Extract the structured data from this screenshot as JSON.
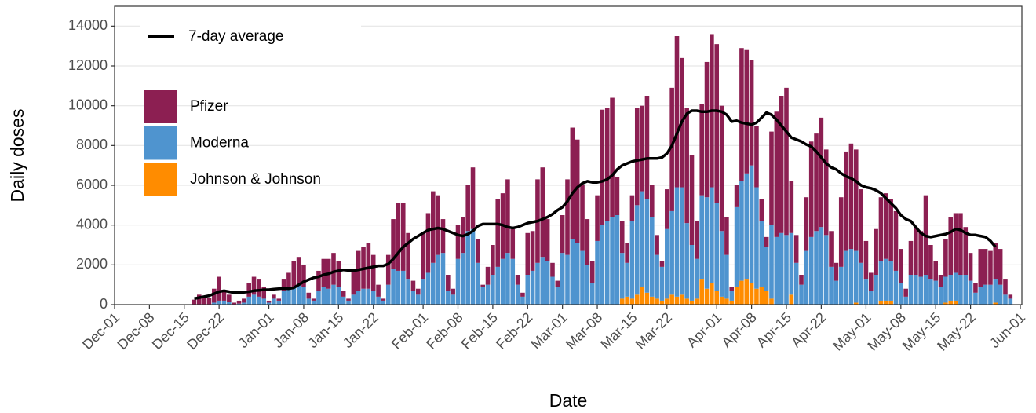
{
  "chart_data": {
    "type": "bar",
    "stacked": true,
    "x_label": "Date",
    "y_label": "Daily doses",
    "x": [
      "Dec-17",
      "Dec-18",
      "Dec-19",
      "Dec-20",
      "Dec-21",
      "Dec-22",
      "Dec-23",
      "Dec-24",
      "Dec-25",
      "Dec-26",
      "Dec-27",
      "Dec-28",
      "Dec-29",
      "Dec-30",
      "Dec-31",
      "Jan-01",
      "Jan-02",
      "Jan-03",
      "Jan-04",
      "Jan-05",
      "Jan-06",
      "Jan-07",
      "Jan-08",
      "Jan-09",
      "Jan-10",
      "Jan-11",
      "Jan-12",
      "Jan-13",
      "Jan-14",
      "Jan-15",
      "Jan-16",
      "Jan-17",
      "Jan-18",
      "Jan-19",
      "Jan-20",
      "Jan-21",
      "Jan-22",
      "Jan-23",
      "Jan-24",
      "Jan-25",
      "Jan-26",
      "Jan-27",
      "Jan-28",
      "Jan-29",
      "Jan-30",
      "Jan-31",
      "Feb-01",
      "Feb-02",
      "Feb-03",
      "Feb-04",
      "Feb-05",
      "Feb-06",
      "Feb-07",
      "Feb-08",
      "Feb-09",
      "Feb-10",
      "Feb-11",
      "Feb-12",
      "Feb-13",
      "Feb-14",
      "Feb-15",
      "Feb-16",
      "Feb-17",
      "Feb-18",
      "Feb-19",
      "Feb-20",
      "Feb-21",
      "Feb-22",
      "Feb-23",
      "Feb-24",
      "Feb-25",
      "Feb-26",
      "Feb-27",
      "Feb-28",
      "Mar-01",
      "Mar-02",
      "Mar-03",
      "Mar-04",
      "Mar-05",
      "Mar-06",
      "Mar-07",
      "Mar-08",
      "Mar-09",
      "Mar-10",
      "Mar-11",
      "Mar-12",
      "Mar-13",
      "Mar-14",
      "Mar-15",
      "Mar-16",
      "Mar-17",
      "Mar-18",
      "Mar-19",
      "Mar-20",
      "Mar-21",
      "Mar-22",
      "Mar-23",
      "Mar-24",
      "Mar-25",
      "Mar-26",
      "Mar-27",
      "Mar-28",
      "Mar-29",
      "Mar-30",
      "Mar-31",
      "Apr-01",
      "Apr-02",
      "Apr-03",
      "Apr-04",
      "Apr-05",
      "Apr-06",
      "Apr-07",
      "Apr-08",
      "Apr-09",
      "Apr-10",
      "Apr-11",
      "Apr-12",
      "Apr-13",
      "Apr-14",
      "Apr-15",
      "Apr-16",
      "Apr-17",
      "Apr-18",
      "Apr-19",
      "Apr-20",
      "Apr-21",
      "Apr-22",
      "Apr-23",
      "Apr-24",
      "Apr-25",
      "Apr-26",
      "Apr-27",
      "Apr-28",
      "Apr-29",
      "Apr-30",
      "May-01",
      "May-02",
      "May-03",
      "May-04",
      "May-05",
      "May-06",
      "May-07",
      "May-08",
      "May-09",
      "May-10",
      "May-11",
      "May-12",
      "May-13",
      "May-14",
      "May-15",
      "May-16",
      "May-17",
      "May-18",
      "May-19",
      "May-20",
      "May-21",
      "May-22",
      "May-23",
      "May-24",
      "May-25",
      "May-26",
      "May-27",
      "May-28",
      "May-29",
      "May-30"
    ],
    "series": [
      {
        "name": "Pfizer",
        "type": "bar",
        "color": "#8c1f52",
        "values": [
          250,
          500,
          450,
          350,
          700,
          1200,
          500,
          350,
          100,
          150,
          200,
          700,
          900,
          900,
          600,
          100,
          200,
          100,
          600,
          800,
          1300,
          1400,
          1100,
          300,
          100,
          1000,
          1400,
          1500,
          1600,
          1300,
          300,
          100,
          1300,
          2000,
          2100,
          2300,
          1800,
          600,
          100,
          1500,
          2500,
          3400,
          3400,
          2300,
          500,
          300,
          2300,
          3000,
          3600,
          3000,
          1700,
          800,
          300,
          1700,
          1800,
          2300,
          3100,
          1200,
          100,
          900,
          1500,
          3400,
          3300,
          3700,
          1500,
          500,
          200,
          2100,
          2000,
          4200,
          4500,
          2100,
          700,
          300,
          1900,
          3800,
          5600,
          5200,
          3300,
          2300,
          1100,
          2300,
          5800,
          5700,
          6000,
          1900,
          1600,
          1000,
          1300,
          4900,
          4300,
          5200,
          1600,
          1000,
          300,
          2000,
          6200,
          7600,
          6500,
          5800,
          4500,
          1900,
          4600,
          6800,
          7700,
          8000,
          6300,
          1900,
          200,
          1100,
          6700,
          6200,
          5300,
          3100,
          1100,
          500,
          4700,
          6300,
          6900,
          7400,
          2600,
          1400,
          500,
          2700,
          4800,
          4900,
          5500,
          4300,
          1800,
          900,
          3500,
          5000,
          5300,
          5100,
          3700,
          1900,
          900,
          2300,
          3200,
          3300,
          3100,
          3000,
          1700,
          400,
          1700,
          2400,
          2300,
          4000,
          1700,
          1000,
          600,
          1900,
          2900,
          3000,
          3100,
          2400,
          1400,
          500,
          1900,
          1800,
          1700,
          1800,
          1800,
          800,
          200
        ]
      },
      {
        "name": "Moderna",
        "type": "bar",
        "color": "#4f94cf",
        "values": [
          0,
          0,
          0,
          0,
          100,
          200,
          200,
          150,
          0,
          50,
          100,
          400,
          500,
          400,
          300,
          100,
          300,
          200,
          700,
          800,
          900,
          1000,
          900,
          300,
          200,
          700,
          900,
          800,
          1000,
          900,
          400,
          200,
          500,
          700,
          800,
          800,
          700,
          400,
          200,
          1000,
          1800,
          1700,
          1700,
          1300,
          700,
          500,
          1300,
          1600,
          2100,
          2500,
          2600,
          700,
          500,
          2300,
          2600,
          3700,
          3800,
          2100,
          900,
          1000,
          1500,
          1900,
          2300,
          2600,
          2300,
          1000,
          400,
          1500,
          1700,
          2100,
          2400,
          2200,
          1400,
          900,
          2600,
          2500,
          3300,
          3100,
          2700,
          2000,
          1100,
          3200,
          4000,
          4200,
          4400,
          4500,
          2300,
          1700,
          3900,
          4500,
          4800,
          4700,
          4000,
          2200,
          1700,
          3500,
          4200,
          5500,
          5400,
          3800,
          2800,
          2000,
          4200,
          4600,
          4800,
          4400,
          3300,
          2200,
          500,
          4000,
          5000,
          5300,
          5900,
          5100,
          3300,
          2200,
          3700,
          3400,
          3600,
          3500,
          3100,
          2100,
          1000,
          2700,
          3400,
          3700,
          3900,
          3500,
          1900,
          1200,
          1900,
          2700,
          2800,
          2600,
          2100,
          1300,
          700,
          1500,
          2000,
          2100,
          2000,
          1700,
          1100,
          400,
          1500,
          1500,
          1400,
          1500,
          1300,
          1200,
          900,
          1300,
          1300,
          1400,
          1500,
          1500,
          1200,
          600,
          900,
          1000,
          1000,
          1200,
          1000,
          500,
          300
        ]
      },
      {
        "name": "Johnson & Johnson",
        "type": "bar",
        "color": "#ff8c00",
        "values": [
          0,
          0,
          0,
          0,
          0,
          0,
          0,
          0,
          0,
          0,
          0,
          0,
          0,
          0,
          0,
          0,
          0,
          0,
          0,
          0,
          0,
          0,
          0,
          0,
          0,
          0,
          0,
          0,
          0,
          0,
          0,
          0,
          0,
          0,
          0,
          0,
          0,
          0,
          0,
          0,
          0,
          0,
          0,
          0,
          0,
          0,
          0,
          0,
          0,
          0,
          0,
          0,
          0,
          0,
          0,
          0,
          0,
          0,
          0,
          0,
          0,
          0,
          0,
          0,
          0,
          0,
          0,
          0,
          0,
          0,
          0,
          0,
          0,
          0,
          0,
          0,
          0,
          0,
          0,
          0,
          0,
          0,
          0,
          0,
          0,
          0,
          300,
          400,
          300,
          500,
          900,
          600,
          400,
          300,
          200,
          300,
          500,
          400,
          500,
          300,
          200,
          300,
          1300,
          800,
          1100,
          700,
          400,
          300,
          200,
          900,
          1200,
          1300,
          1100,
          800,
          900,
          700,
          300,
          0,
          0,
          0,
          500,
          0,
          0,
          0,
          0,
          0,
          0,
          0,
          0,
          0,
          0,
          0,
          0,
          100,
          0,
          0,
          0,
          0,
          200,
          200,
          200,
          0,
          0,
          0,
          0,
          0,
          0,
          0,
          0,
          0,
          0,
          100,
          200,
          200,
          0,
          0,
          0,
          0,
          0,
          0,
          0,
          100,
          0,
          0,
          0
        ]
      },
      {
        "name": "7-day average",
        "type": "line",
        "color": "#000000",
        "values": [
          300,
          350,
          400,
          450,
          550,
          650,
          700,
          650,
          600,
          600,
          620,
          650,
          700,
          720,
          750,
          750,
          780,
          800,
          820,
          800,
          850,
          1000,
          1150,
          1250,
          1350,
          1400,
          1500,
          1550,
          1650,
          1700,
          1750,
          1720,
          1700,
          1750,
          1800,
          1850,
          1900,
          1950,
          1950,
          2050,
          2300,
          2600,
          2900,
          3100,
          3300,
          3450,
          3600,
          3750,
          3800,
          3850,
          3800,
          3700,
          3600,
          3500,
          3450,
          3550,
          3700,
          3950,
          4050,
          4050,
          4050,
          4050,
          4000,
          3900,
          3850,
          3900,
          4000,
          4100,
          4150,
          4200,
          4300,
          4400,
          4550,
          4750,
          4900,
          5200,
          5600,
          5900,
          6100,
          6200,
          6150,
          6150,
          6200,
          6300,
          6500,
          6800,
          7000,
          7100,
          7200,
          7250,
          7300,
          7350,
          7350,
          7350,
          7400,
          7600,
          8000,
          8600,
          9200,
          9600,
          9750,
          9750,
          9700,
          9700,
          9750,
          9750,
          9700,
          9550,
          9200,
          9250,
          9150,
          9100,
          9050,
          9150,
          9400,
          9650,
          9550,
          9300,
          9000,
          8700,
          8400,
          8300,
          8200,
          8050,
          7950,
          7700,
          7400,
          7100,
          6900,
          6800,
          6600,
          6450,
          6350,
          6200,
          6000,
          5900,
          5850,
          5750,
          5600,
          5350,
          5100,
          4850,
          4500,
          4300,
          4200,
          3900,
          3600,
          3450,
          3400,
          3450,
          3500,
          3550,
          3650,
          3800,
          3750,
          3600,
          3500,
          3500,
          3450,
          3400,
          3200,
          2900,
          null,
          null,
          null
        ]
      }
    ],
    "xlim": [
      "Dec-01",
      "Jun-01"
    ],
    "xticks": [
      "Dec-01",
      "Dec-08",
      "Dec-15",
      "Dec-22",
      "Jan-01",
      "Jan-08",
      "Jan-15",
      "Jan-22",
      "Feb-01",
      "Feb-08",
      "Feb-15",
      "Feb-22",
      "Mar-01",
      "Mar-08",
      "Mar-15",
      "Mar-22",
      "Apr-01",
      "Apr-08",
      "Apr-15",
      "Apr-22",
      "May-01",
      "May-08",
      "May-15",
      "May-22",
      "Jun-01"
    ],
    "ylim": [
      0,
      15000
    ],
    "yticks": [
      0,
      2000,
      4000,
      6000,
      8000,
      10000,
      12000,
      14000
    ],
    "grid": true
  }
}
